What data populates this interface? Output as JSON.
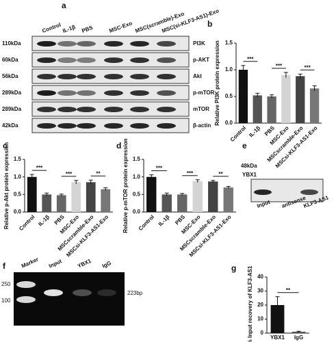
{
  "panels": {
    "a": "a",
    "b": "b",
    "c": "c",
    "d": "d",
    "e": "e",
    "f": "f",
    "g": "g"
  },
  "blot_a": {
    "lanes": [
      "Control",
      "IL-1β",
      "PBS",
      "MSC-Exo",
      "MSC(scramble)-Exo",
      "MSC(si-KLF3-AS1)-Exo"
    ],
    "rows": [
      {
        "size": "110kDa",
        "protein": "PI3K"
      },
      {
        "size": "60kDa",
        "protein": "p-AKT"
      },
      {
        "size": "56kDa",
        "protein": "Akt"
      },
      {
        "size": "289kDa",
        "protein": "p-mTOR"
      },
      {
        "size": "289kDa",
        "protein": "mTOR"
      },
      {
        "size": "42kDa",
        "protein": "β-actin"
      }
    ]
  },
  "blot_e": {
    "size": "48kDa",
    "protein": "YBX1",
    "lanes": [
      "Input",
      "antisense",
      "KLF3-AS1"
    ]
  },
  "gel_f": {
    "lanes": [
      "Marker",
      "Input",
      "YBX1",
      "IgG"
    ],
    "markers": [
      "250",
      "100"
    ],
    "product": "223bp"
  },
  "chart_data": [
    {
      "type": "bar",
      "y_label": "Relative PI3K protein expression",
      "categories": [
        "Control",
        "IL-1β",
        "PBS",
        "MSC-Exo",
        "MSCscramble-Exo",
        "MSCsi-KLF3-AS1-Exo"
      ],
      "values": [
        1.0,
        0.52,
        0.5,
        0.9,
        0.88,
        0.65
      ],
      "errors": [
        0.08,
        0.04,
        0.03,
        0.05,
        0.04,
        0.05
      ],
      "colors": [
        "#111111",
        "#555555",
        "#666666",
        "#d4d4d4",
        "#444444",
        "#777777"
      ],
      "ylim": [
        0,
        1.5
      ],
      "yticks": [
        {
          "value": 0,
          "label": "0.0"
        },
        0.5,
        {
          "value": 1,
          "label": "1.0"
        },
        1.5
      ],
      "significance": [
        {
          "text": "***",
          "categories": [
            "Control",
            "IL-1β"
          ]
        },
        {
          "text": "***",
          "categories": [
            "PBS",
            "MSC-Exo"
          ]
        },
        {
          "text": "***",
          "categories": [
            "MSCscramble-Exo",
            "MSCsi-KLF3-AS1-Exo"
          ]
        }
      ]
    },
    {
      "type": "bar",
      "y_label": "Relative p-Akt protein expression",
      "categories": [
        "Control",
        "IL-1β",
        "PBS",
        "MSC-Exo",
        "MSCscramble-Exo",
        "MSCsi-KLF3-AS1-Exo"
      ],
      "values": [
        1.0,
        0.5,
        0.48,
        0.85,
        0.85,
        0.65
      ],
      "errors": [
        0.07,
        0.04,
        0.03,
        0.05,
        0.06,
        0.04
      ],
      "colors": [
        "#111111",
        "#555555",
        "#666666",
        "#d4d4d4",
        "#444444",
        "#777777"
      ],
      "ylim": [
        0,
        1.5
      ],
      "yticks": [
        {
          "value": 0,
          "label": "0.0"
        },
        0.5,
        {
          "value": 1,
          "label": "1.0"
        },
        1.5
      ],
      "significance": [
        {
          "text": "***",
          "categories": [
            "Control",
            "IL-1β"
          ]
        },
        {
          "text": "***",
          "categories": [
            "PBS",
            "MSC-Exo"
          ]
        },
        {
          "text": "**",
          "categories": [
            "MSCscramble-Exo",
            "MSCsi-KLF3-AS1-Exo"
          ]
        }
      ]
    },
    {
      "type": "bar",
      "y_label": "Relative p-mTOR protein expression",
      "categories": [
        "Control",
        "IL-1β",
        "PBS",
        "MSC-Exo",
        "MSCscramble-Exo",
        "MSCsi-KLF3-AS1-Exo"
      ],
      "values": [
        1.0,
        0.5,
        0.5,
        0.88,
        0.87,
        0.7
      ],
      "errors": [
        0.06,
        0.04,
        0.03,
        0.04,
        0.03,
        0.03
      ],
      "colors": [
        "#111111",
        "#555555",
        "#666666",
        "#d4d4d4",
        "#444444",
        "#777777"
      ],
      "ylim": [
        0,
        1.5
      ],
      "yticks": [
        {
          "value": 0,
          "label": "0.0"
        },
        0.5,
        {
          "value": 1,
          "label": "1.0"
        },
        1.5
      ],
      "significance": [
        {
          "text": "***",
          "categories": [
            "Control",
            "IL-1β"
          ]
        },
        {
          "text": "***",
          "categories": [
            "PBS",
            "MSC-Exo"
          ]
        },
        {
          "text": "**",
          "categories": [
            "MSCscramble-Exo",
            "MSCsi-KLF3-AS1-Exo"
          ]
        }
      ]
    },
    {
      "type": "bar",
      "y_label": "% Input recovery of KLF3-AS1",
      "categories": [
        "YBX1",
        "IgG"
      ],
      "values": [
        20,
        1
      ],
      "errors": [
        6,
        0.3
      ],
      "colors": [
        "#111111",
        "#555555"
      ],
      "ylim": [
        0,
        40
      ],
      "yticks": [
        0,
        10,
        20,
        30,
        40
      ],
      "significance": [
        {
          "text": "**",
          "categories": [
            "YBX1",
            "IgG"
          ]
        }
      ]
    }
  ]
}
